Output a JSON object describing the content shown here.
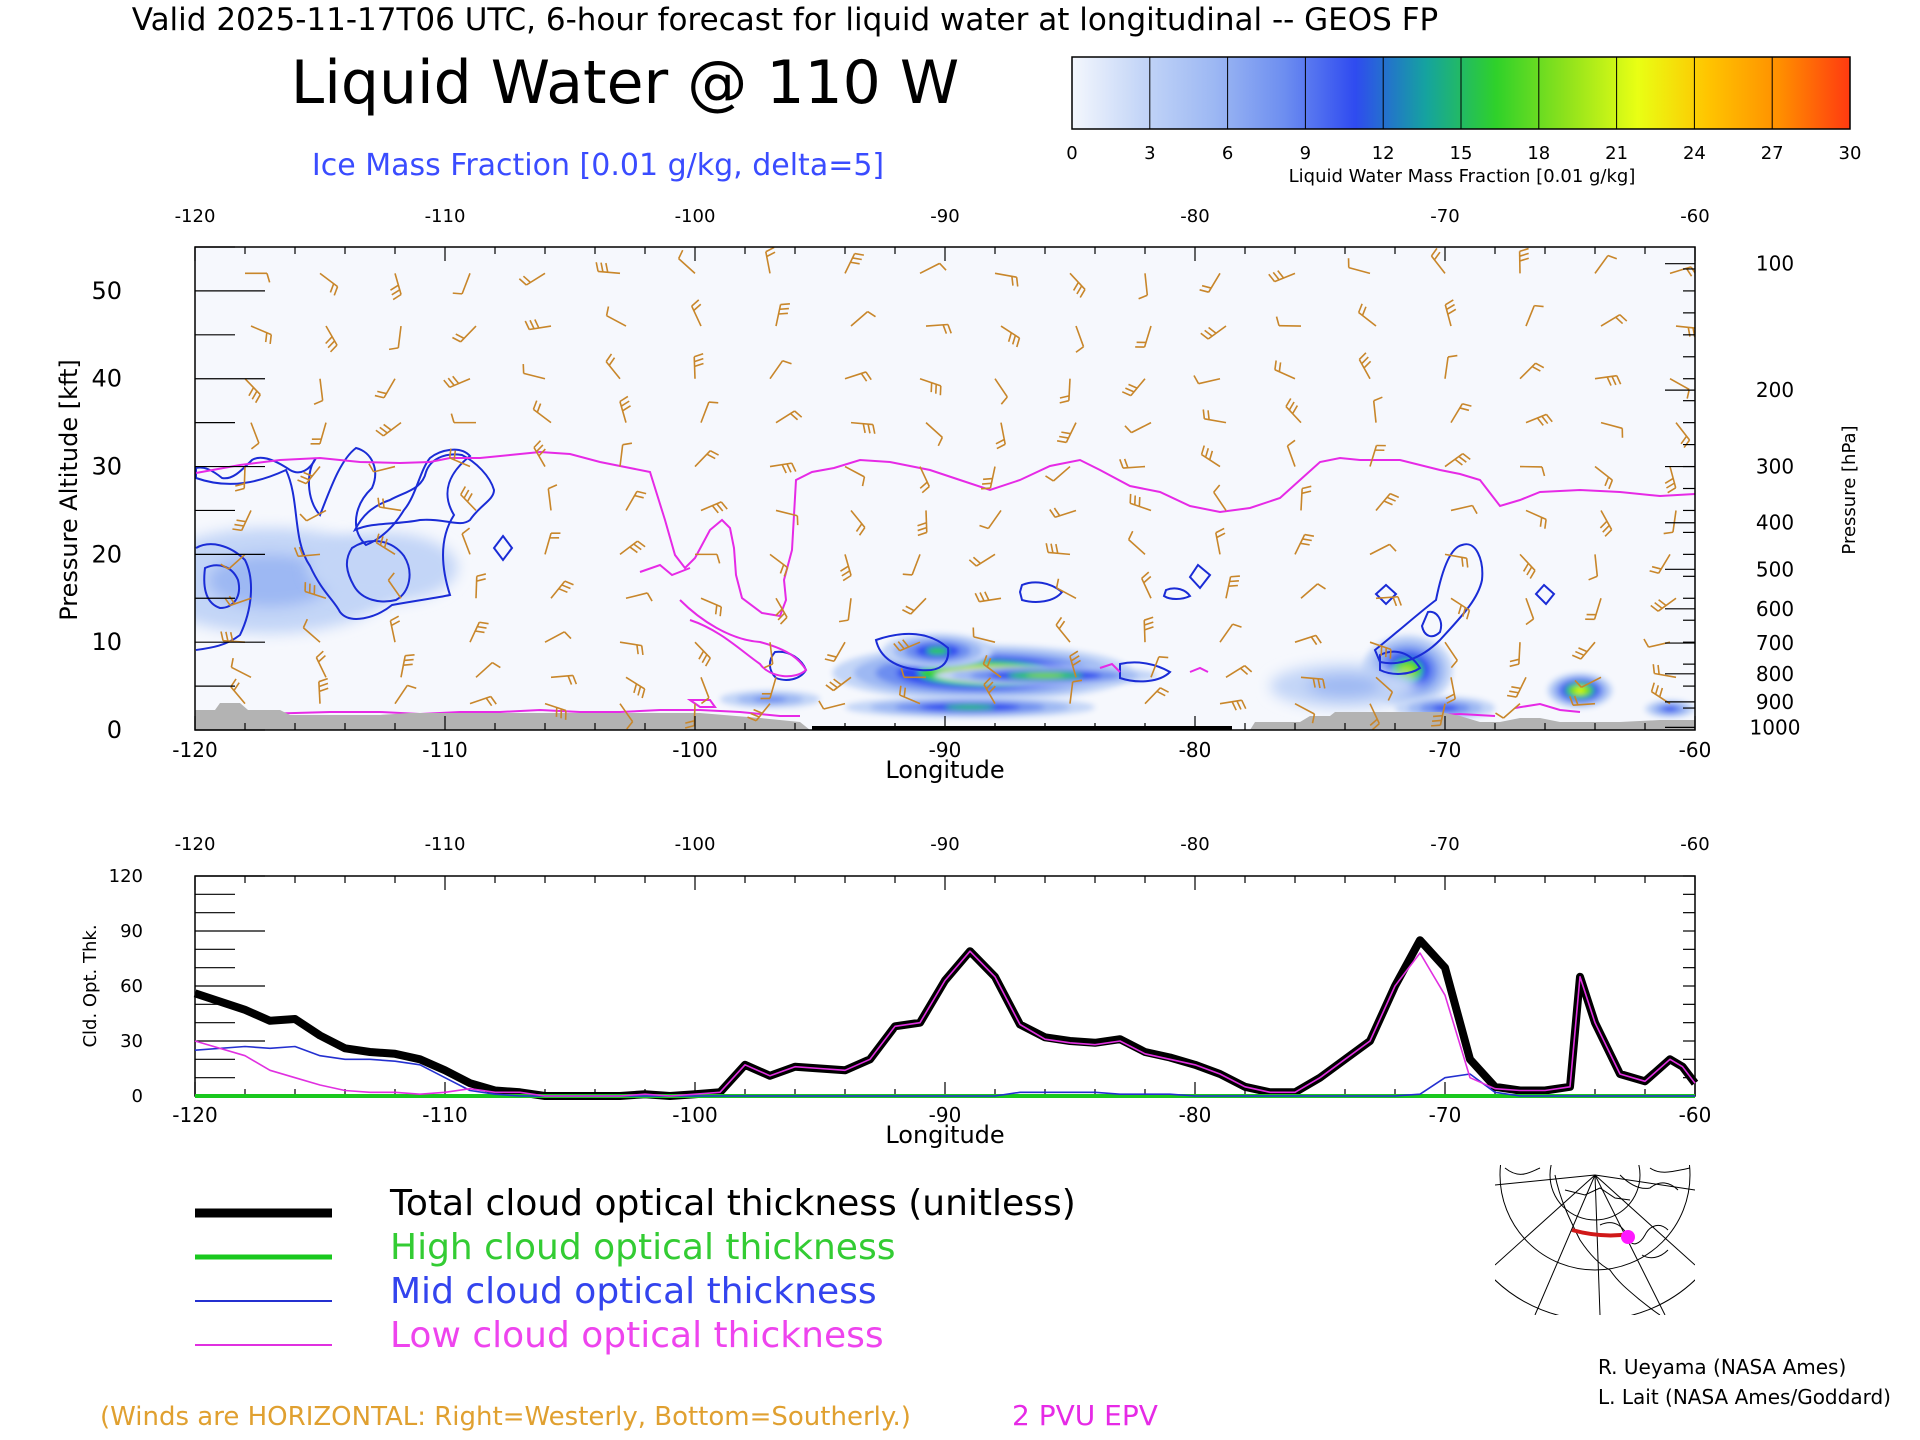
{
  "header": {
    "line": "Valid 2025-11-17T06 UTC, 6-hour forecast for liquid water at longitudinal -- GEOS FP"
  },
  "title": "Liquid Water @ 110 W",
  "subtitle": "Ice Mass Fraction [0.01 g/kg, delta=5]",
  "colorbar": {
    "label": "Liquid Water Mass Fraction [0.01 g/kg]",
    "ticks": [
      "0",
      "3",
      "6",
      "9",
      "12",
      "15",
      "18",
      "21",
      "24",
      "27",
      "30"
    ],
    "colors": [
      "#f4f7fd",
      "#c3d5f7",
      "#9db8f3",
      "#6d8ef0",
      "#2f4bf0",
      "#15a39f",
      "#2fd12a",
      "#8fe21c",
      "#e9ff14",
      "#ffc400",
      "#ff8f00",
      "#ff3a10"
    ]
  },
  "colors": {
    "ice_contour": "#1a2cd6",
    "epv": "#e62ae6",
    "wind": "#c8862a",
    "total": "#000000",
    "high": "#19c81e",
    "mid": "#2430d0",
    "low": "#e030e0",
    "terrain": "#b3b3b3"
  },
  "chart_data": [
    {
      "type": "heatmap",
      "title": "Liquid Water @ 110 W",
      "xlabel": "Longitude",
      "ylabel": "Pressure Altitude [kft]",
      "ylabel_right": "Pressure [hPa]",
      "xlim": [
        -120,
        -60
      ],
      "ylim": [
        0,
        55
      ],
      "xticks": [
        "-120",
        "-110",
        "-100",
        "-90",
        "-80",
        "-70",
        "-60"
      ],
      "yticks": [
        "0",
        "10",
        "20",
        "30",
        "40",
        "50"
      ],
      "pressure_ticks": [
        {
          "hPa": "100",
          "kft": 53.1
        },
        {
          "hPa": "200",
          "kft": 38.7
        },
        {
          "hPa": "300",
          "kft": 30.0
        },
        {
          "hPa": "400",
          "kft": 23.6
        },
        {
          "hPa": "500",
          "kft": 18.3
        },
        {
          "hPa": "600",
          "kft": 13.8
        },
        {
          "hPa": "700",
          "kft": 9.9
        },
        {
          "hPa": "800",
          "kft": 6.4
        },
        {
          "hPa": "900",
          "kft": 3.2
        },
        {
          "hPa": "1000",
          "kft": 0.3
        }
      ],
      "liquid_water_blobs": [
        {
          "lon": -88.5,
          "kft": 6.5,
          "rlon": 6.0,
          "rkft": 3.2,
          "value": 20
        },
        {
          "lon": -86.0,
          "kft": 6.2,
          "rlon": 4.5,
          "rkft": 1.2,
          "value": 17
        },
        {
          "lon": -90.3,
          "kft": 9.0,
          "rlon": 2.2,
          "rkft": 2.0,
          "value": 14
        },
        {
          "lon": -89.0,
          "kft": 2.6,
          "rlon": 5.0,
          "rkft": 1.2,
          "value": 14
        },
        {
          "lon": -71.5,
          "kft": 6.8,
          "rlon": 1.8,
          "rkft": 4.0,
          "value": 18
        },
        {
          "lon": -70.0,
          "kft": 2.5,
          "rlon": 2.0,
          "rkft": 1.3,
          "value": 13
        },
        {
          "lon": -64.6,
          "kft": 4.5,
          "rlon": 1.3,
          "rkft": 2.0,
          "value": 22
        },
        {
          "lon": -61.0,
          "kft": 2.4,
          "rlon": 1.0,
          "rkft": 1.0,
          "value": 12
        },
        {
          "lon": -97.0,
          "kft": 3.5,
          "rlon": 2.0,
          "rkft": 1.0,
          "value": 9
        },
        {
          "lon": -117.0,
          "kft": 17.0,
          "rlon": 5.0,
          "rkft": 6.0,
          "value": 5
        },
        {
          "lon": -112.5,
          "kft": 18.5,
          "rlon": 3.0,
          "rkft": 4.0,
          "value": 4
        },
        {
          "lon": -74.0,
          "kft": 5.0,
          "rlon": 3.0,
          "rkft": 2.5,
          "value": 5
        }
      ]
    },
    {
      "type": "line",
      "xlabel": "Longitude",
      "ylabel": "Cld. Opt. Thk.",
      "xlim": [
        -120,
        -60
      ],
      "ylim": [
        0,
        120
      ],
      "xticks": [
        "-120",
        "-110",
        "-100",
        "-90",
        "-80",
        "-70",
        "-60"
      ],
      "yticks": [
        "0",
        "30",
        "60",
        "90",
        "120"
      ],
      "x": [
        -120,
        -118,
        -117,
        -116,
        -115,
        -114,
        -113,
        -112,
        -111,
        -110,
        -109,
        -108,
        -107,
        -106,
        -105,
        -104,
        -103,
        -102,
        -101,
        -100,
        -99,
        -98,
        -97,
        -96,
        -95,
        -94,
        -93,
        -92,
        -91,
        -90,
        -89,
        -88,
        -87,
        -86,
        -85,
        -84,
        -83,
        -82,
        -81,
        -80,
        -79,
        -78,
        -77,
        -76,
        -75,
        -74,
        -73,
        -72,
        -71,
        -70,
        -69,
        -68,
        -67,
        -66,
        -65,
        -64.6,
        -64,
        -63,
        -62,
        -61,
        -60.5,
        -60
      ],
      "series": [
        {
          "name": "Total cloud optical thickness (unitless)",
          "values": [
            56,
            47,
            41,
            42,
            33,
            26,
            24,
            23,
            20,
            14,
            7,
            3,
            2,
            0,
            0,
            0,
            0,
            1,
            0,
            1,
            2,
            17,
            11,
            16,
            15,
            14,
            20,
            38,
            40,
            63,
            79,
            65,
            39,
            32,
            30,
            29,
            31,
            24,
            21,
            17,
            12,
            5,
            2,
            2,
            10,
            20,
            30,
            60,
            85,
            70,
            20,
            5,
            3,
            3,
            5,
            65,
            40,
            12,
            8,
            20,
            16,
            7
          ]
        },
        {
          "name": "High cloud optical thickness",
          "values": [
            0,
            0,
            0,
            0,
            0,
            0,
            0,
            0,
            0,
            0,
            0,
            0,
            0,
            0,
            0,
            0,
            0,
            0,
            0,
            0,
            0,
            0,
            0,
            0,
            0,
            0,
            0,
            0,
            0,
            0,
            0,
            0,
            0,
            0,
            0,
            0,
            0,
            0,
            0,
            0,
            0,
            0,
            0,
            0,
            0,
            0,
            0,
            0,
            0,
            0,
            0,
            0,
            0,
            0,
            0,
            0,
            0,
            0,
            0,
            0,
            0,
            0
          ]
        },
        {
          "name": "Mid cloud optical thickness",
          "values": [
            25,
            27,
            26,
            27,
            22,
            20,
            20,
            19,
            17,
            10,
            3,
            1,
            0,
            0,
            0,
            0,
            0,
            0,
            0,
            0,
            0,
            0,
            0,
            0,
            0,
            0,
            0,
            0,
            0,
            0,
            0,
            0,
            2,
            2,
            2,
            2,
            1,
            1,
            1,
            0,
            0,
            0,
            0,
            0,
            0,
            0,
            0,
            0,
            1,
            10,
            12,
            2,
            0,
            0,
            0,
            0,
            0,
            0,
            0,
            0,
            0,
            0
          ]
        },
        {
          "name": "Low cloud optical thickness",
          "values": [
            30,
            22,
            14,
            10,
            6,
            3,
            2,
            2,
            1,
            2,
            4,
            2,
            2,
            0,
            0,
            0,
            0,
            1,
            0,
            1,
            2,
            17,
            11,
            16,
            15,
            14,
            20,
            38,
            40,
            63,
            79,
            65,
            39,
            31,
            29,
            28,
            30,
            23,
            20,
            17,
            12,
            5,
            2,
            2,
            10,
            20,
            30,
            60,
            78,
            55,
            10,
            4,
            3,
            3,
            5,
            65,
            40,
            12,
            8,
            20,
            16,
            7
          ]
        }
      ]
    }
  ],
  "top_axis_ticks": [
    "-120",
    "-110",
    "-100",
    "-90",
    "-80",
    "-70",
    "-60"
  ],
  "lower": {
    "top_axis_ticks": [
      "-120",
      "-110",
      "-100",
      "-90",
      "-80",
      "-70",
      "-60"
    ]
  },
  "legend": {
    "total": "Total cloud optical thickness (unitless)",
    "high": "High cloud optical thickness",
    "mid": "Mid cloud optical thickness",
    "low": "Low cloud optical thickness"
  },
  "footer": {
    "winds_note": "(Winds are HORIZONTAL: Right=Westerly, Bottom=Southerly.)",
    "epv_label": "2 PVU EPV",
    "credit1": "R. Ueyama (NASA Ames)",
    "credit2": "L. Lait (NASA Ames/Goddard)"
  },
  "map": {
    "marker_color": "#ff19ff",
    "section_color": "#d01818"
  }
}
